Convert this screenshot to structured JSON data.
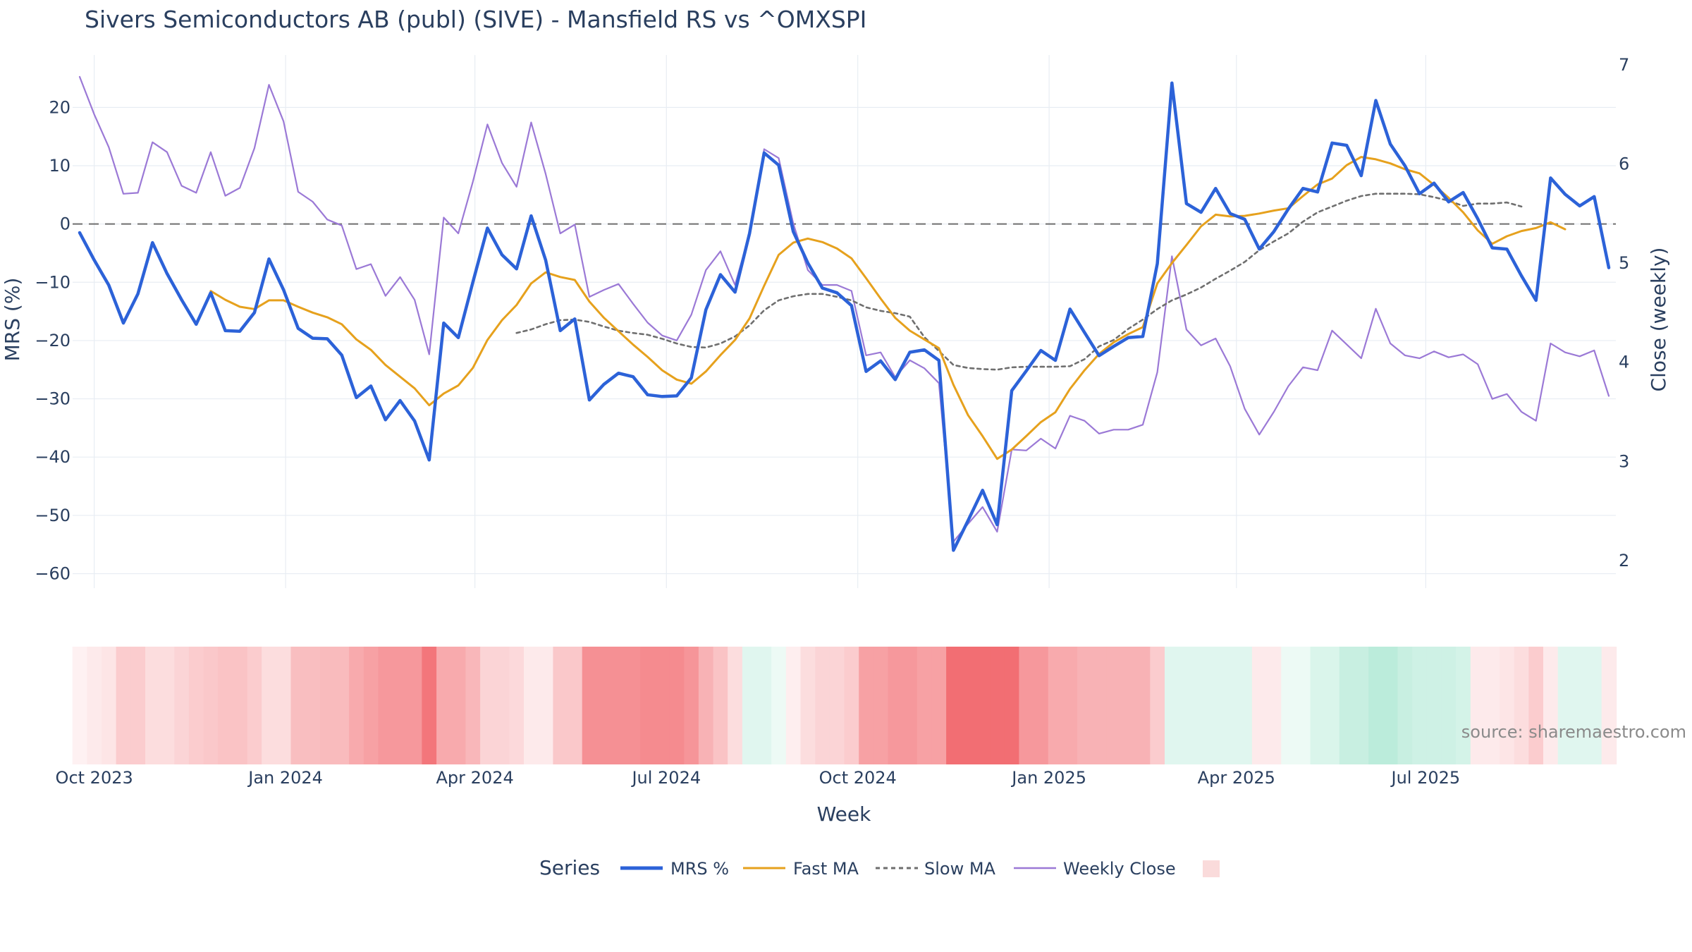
{
  "chart_data": {
    "type": "line",
    "title": "Sivers Semiconductors AB (publ) (SIVE) - Mansfield RS vs ^OMXSPI",
    "xlabel": "Week",
    "ylabel": "MRS (%)",
    "y2label": "Close (weekly)",
    "ylim": [
      -62,
      29
    ],
    "y2lim": [
      1.75,
      7.1
    ],
    "y_ticks": [
      20,
      10,
      0,
      -10,
      -20,
      -30,
      -40,
      -50,
      -60
    ],
    "y_tick_labels": [
      "20",
      "10",
      "0",
      "−10",
      "−20",
      "−30",
      "−40",
      "−50",
      "−60"
    ],
    "y2_ticks": [
      7,
      6,
      5,
      4,
      3,
      2
    ],
    "y2_tick_labels": [
      "7",
      "6",
      "5",
      "4",
      "3",
      "2"
    ],
    "x_tick_labels": [
      "Oct 2023",
      "Jan 2024",
      "Apr 2024",
      "Jul 2024",
      "Oct 2024",
      "Jan 2025",
      "Apr 2025",
      "Jul 2025"
    ],
    "x_tick_weeks": [
      1,
      14.14,
      27.14,
      40.29,
      53.43,
      66.57,
      79.43,
      92.43
    ],
    "zero_line": 0,
    "weeks_count": 106,
    "series": [
      {
        "name": "MRS %",
        "color": "#2c62d8",
        "axis": "y",
        "style": "solid",
        "start_week": 0,
        "values": [
          -1.5,
          -6.2,
          -10.5,
          -17,
          -12,
          -3.2,
          -8.5,
          -13,
          -17.2,
          -11.8,
          -18.3,
          -18.4,
          -15.2,
          -6,
          -11.3,
          -17.9,
          -19.6,
          -19.7,
          -22.5,
          -29.8,
          -27.8,
          -33.6,
          -30.3,
          -33.8,
          -40.5,
          -17,
          -19.5,
          -10,
          -0.7,
          -5.3,
          -7.7,
          1.4,
          -6.2,
          -18.3,
          -16.3,
          -30.2,
          -27.5,
          -25.6,
          -26.2,
          -29.3,
          -29.6,
          -29.5,
          -26.4,
          -14.7,
          -8.7,
          -11.7,
          -1.6,
          12.2,
          10.1,
          -1.3,
          -6.7,
          -11,
          -11.8,
          -14,
          -25.3,
          -23.5,
          -26.7,
          -22,
          -21.6,
          -23.4,
          -56,
          -50.9,
          -45.7,
          -51.6,
          -28.6,
          -25.2,
          -21.7,
          -23.4,
          -14.6,
          -18.6,
          -22.6,
          -21,
          -19.5,
          -19.3,
          -6.8,
          24.2,
          3.5,
          2,
          6.1,
          1.8,
          0.8,
          -4.3,
          -1.3,
          2.6,
          6.1,
          5.5,
          13.9,
          13.5,
          8.3,
          21.2,
          13.7,
          10,
          5.2,
          7,
          3.8,
          5.4,
          0.9,
          -4.1,
          -4.3,
          -8.9,
          -13.1,
          7.9,
          5.1,
          3.1,
          4.7,
          -7.5
        ]
      },
      {
        "name": "Fast MA",
        "color": "#e6a11d",
        "axis": "y",
        "style": "solid",
        "start_week": 9,
        "values": [
          -11.5,
          -13,
          -14.2,
          -14.6,
          -13.1,
          -13.1,
          -14.2,
          -15.2,
          -16,
          -17.2,
          -19.8,
          -21.6,
          -24.2,
          -26.2,
          -28.2,
          -31.1,
          -29.1,
          -27.7,
          -24.7,
          -19.9,
          -16.5,
          -13.9,
          -10.2,
          -8.3,
          -9.1,
          -9.6,
          -13.3,
          -16.1,
          -18.4,
          -20.7,
          -22.8,
          -25.1,
          -26.7,
          -27.4,
          -25.3,
          -22.5,
          -19.9,
          -16.2,
          -10.6,
          -5.3,
          -3.2,
          -2.5,
          -3.1,
          -4.2,
          -5.9,
          -9.3,
          -12.8,
          -16.1,
          -18.3,
          -19.8,
          -21.3,
          -27.6,
          -32.8,
          -36.4,
          -40.3,
          -38.7,
          -36.4,
          -34,
          -32.3,
          -28.3,
          -25.1,
          -22.3,
          -20.3,
          -18.9,
          -17.7,
          -10.2,
          -6.7,
          -3.6,
          -0.4,
          1.6,
          1.3,
          1.4,
          1.8,
          2.3,
          2.7,
          4.8,
          6.8,
          7.8,
          10.1,
          11.5,
          11.1,
          10.4,
          9.4,
          8.7,
          6.7,
          4.5,
          2,
          -1.1,
          -3.4,
          -2.1,
          -1.2,
          -0.7,
          0.3,
          -0.9
        ]
      },
      {
        "name": "Slow MA",
        "color": "#6f6f6f",
        "axis": "y",
        "style": "dashed",
        "start_week": 30,
        "values": [
          -18.7,
          -18.1,
          -17.2,
          -16.5,
          -16.4,
          -16.8,
          -17.6,
          -18.3,
          -18.7,
          -19,
          -19.7,
          -20.5,
          -21.1,
          -21.2,
          -20.5,
          -19.3,
          -17.4,
          -14.8,
          -13.1,
          -12.4,
          -12,
          -12,
          -12.5,
          -13.1,
          -14.3,
          -14.9,
          -15.3,
          -15.9,
          -19.4,
          -21.8,
          -24.2,
          -24.7,
          -24.9,
          -25,
          -24.6,
          -24.5,
          -24.5,
          -24.5,
          -24.4,
          -23.2,
          -21,
          -19.9,
          -18,
          -16.4,
          -14.6,
          -13.1,
          -12.1,
          -10.9,
          -9.4,
          -8,
          -6.5,
          -4.5,
          -3,
          -1.6,
          0.4,
          2,
          3,
          4,
          4.8,
          5.2,
          5.2,
          5.2,
          5.1,
          4.6,
          4,
          3.1,
          3.5,
          3.5,
          3.7,
          3
        ]
      },
      {
        "name": "Weekly Close",
        "color": "#9b79d6",
        "axis": "y2",
        "style": "solid",
        "start_week": 0,
        "values": [
          6.88,
          6.5,
          6.17,
          5.7,
          5.71,
          6.22,
          6.12,
          5.78,
          5.71,
          6.12,
          5.68,
          5.76,
          6.16,
          6.8,
          6.43,
          5.72,
          5.62,
          5.44,
          5.38,
          4.94,
          4.99,
          4.67,
          4.86,
          4.63,
          4.08,
          5.46,
          5.3,
          5.82,
          6.4,
          6.01,
          5.77,
          6.42,
          5.9,
          5.3,
          5.39,
          4.66,
          4.73,
          4.79,
          4.59,
          4.4,
          4.27,
          4.22,
          4.48,
          4.93,
          5.12,
          4.78,
          5.3,
          6.15,
          6.06,
          5.4,
          4.93,
          4.78,
          4.78,
          4.72,
          4.07,
          4.1,
          3.85,
          4.02,
          3.94,
          3.79,
          2.19,
          2.37,
          2.54,
          2.29,
          3.12,
          3.11,
          3.23,
          3.13,
          3.46,
          3.41,
          3.28,
          3.32,
          3.32,
          3.37,
          3.9,
          5.07,
          4.33,
          4.17,
          4.24,
          3.96,
          3.53,
          3.27,
          3.5,
          3.76,
          3.95,
          3.92,
          4.32,
          4.18,
          4.04,
          4.54,
          4.19,
          4.07,
          4.04,
          4.11,
          4.05,
          4.08,
          3.98,
          3.63,
          3.68,
          3.5,
          3.41,
          4.19,
          4.1,
          4.06,
          4.12,
          3.66
        ]
      }
    ],
    "heatmap": {
      "name": "MRS regime strip",
      "colormap": [
        "#f0545a",
        "#ffffff",
        "#84dcbd"
      ],
      "values": [
        -8,
        -12,
        -15,
        -30,
        -30,
        -20,
        -20,
        -25,
        -30,
        -32,
        -35,
        -35,
        -30,
        -20,
        -20,
        -38,
        -38,
        -40,
        -40,
        -50,
        -55,
        -60,
        -60,
        -60,
        -80,
        -50,
        -50,
        -42,
        -25,
        -25,
        -22,
        -12,
        -12,
        -32,
        -32,
        -65,
        -65,
        -65,
        -65,
        -68,
        -68,
        -68,
        -62,
        -45,
        -35,
        -20,
        25,
        25,
        15,
        -10,
        -20,
        -25,
        -25,
        -30,
        -55,
        -55,
        -60,
        -60,
        -55,
        -55,
        -85,
        -85,
        -85,
        -85,
        -85,
        -60,
        -60,
        -50,
        -50,
        -45,
        -45,
        -45,
        -45,
        -45,
        -30,
        25,
        25,
        25,
        25,
        25,
        25,
        -12,
        -12,
        15,
        15,
        30,
        30,
        45,
        45,
        55,
        55,
        45,
        40,
        40,
        40,
        35,
        -12,
        -12,
        -15,
        -20,
        -30,
        -12,
        25,
        25,
        25,
        -12
      ]
    },
    "legend": {
      "title": "Series",
      "position": "bottom-center",
      "items": [
        "MRS %",
        "Fast MA",
        "Slow MA",
        "Weekly Close",
        ""
      ]
    },
    "source": "source: sharemaestro.com"
  }
}
